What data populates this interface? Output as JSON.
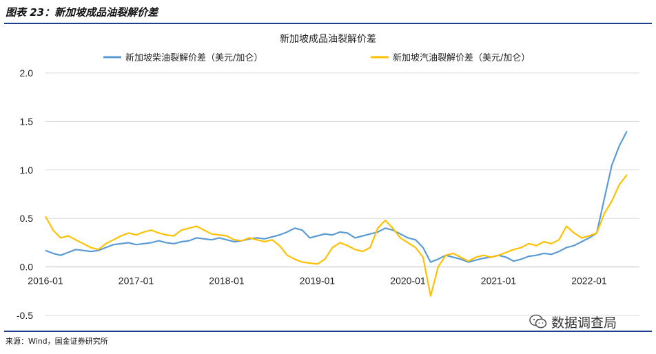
{
  "header": {
    "figure_title": "图表 23：新加坡成品油裂解价差"
  },
  "footer": {
    "source": "来源：Wind，国金证券研究所"
  },
  "watermark": {
    "text": "数据调查局",
    "icon": "wechat-icon"
  },
  "colors": {
    "diesel": "#5b9bd5",
    "gasoline": "#ffc000",
    "rule": "#1a3f8c",
    "grid": "#d9d9d9"
  },
  "chart_data": {
    "type": "line",
    "title": "新加坡成品油裂解价差",
    "xlabel": "",
    "ylabel": "",
    "ylim": [
      -0.5,
      2.0
    ],
    "yticks": [
      "-0.5",
      "0.0",
      "0.5",
      "1.0",
      "1.5",
      "2.0"
    ],
    "xticks": [
      "2016-01",
      "2017-01",
      "2018-01",
      "2019-01",
      "2020-01",
      "2021-01",
      "2022-01"
    ],
    "x_range": [
      "2016-01",
      "2022-06"
    ],
    "grid": "horizontal",
    "legend_position": "top",
    "series": [
      {
        "name": "新加坡柴油裂解价差（美元/加仑）",
        "color": "#5b9bd5",
        "points": [
          [
            "2016-01",
            0.17
          ],
          [
            "2016-02",
            0.14
          ],
          [
            "2016-03",
            0.12
          ],
          [
            "2016-04",
            0.15
          ],
          [
            "2016-05",
            0.18
          ],
          [
            "2016-06",
            0.17
          ],
          [
            "2016-07",
            0.16
          ],
          [
            "2016-08",
            0.17
          ],
          [
            "2016-09",
            0.2
          ],
          [
            "2016-10",
            0.23
          ],
          [
            "2016-11",
            0.24
          ],
          [
            "2016-12",
            0.25
          ],
          [
            "2017-01",
            0.23
          ],
          [
            "2017-02",
            0.24
          ],
          [
            "2017-03",
            0.25
          ],
          [
            "2017-04",
            0.27
          ],
          [
            "2017-05",
            0.25
          ],
          [
            "2017-06",
            0.24
          ],
          [
            "2017-07",
            0.26
          ],
          [
            "2017-08",
            0.27
          ],
          [
            "2017-09",
            0.3
          ],
          [
            "2017-10",
            0.29
          ],
          [
            "2017-11",
            0.28
          ],
          [
            "2017-12",
            0.3
          ],
          [
            "2018-01",
            0.28
          ],
          [
            "2018-02",
            0.26
          ],
          [
            "2018-03",
            0.27
          ],
          [
            "2018-04",
            0.29
          ],
          [
            "2018-05",
            0.3
          ],
          [
            "2018-06",
            0.29
          ],
          [
            "2018-07",
            0.31
          ],
          [
            "2018-08",
            0.33
          ],
          [
            "2018-09",
            0.36
          ],
          [
            "2018-10",
            0.4
          ],
          [
            "2018-11",
            0.38
          ],
          [
            "2018-12",
            0.3
          ],
          [
            "2019-01",
            0.32
          ],
          [
            "2019-02",
            0.34
          ],
          [
            "2019-03",
            0.33
          ],
          [
            "2019-04",
            0.36
          ],
          [
            "2019-05",
            0.35
          ],
          [
            "2019-06",
            0.3
          ],
          [
            "2019-07",
            0.32
          ],
          [
            "2019-08",
            0.34
          ],
          [
            "2019-09",
            0.36
          ],
          [
            "2019-10",
            0.4
          ],
          [
            "2019-11",
            0.38
          ],
          [
            "2019-12",
            0.34
          ],
          [
            "2020-01",
            0.3
          ],
          [
            "2020-02",
            0.28
          ],
          [
            "2020-03",
            0.2
          ],
          [
            "2020-04",
            0.05
          ],
          [
            "2020-05",
            0.08
          ],
          [
            "2020-06",
            0.12
          ],
          [
            "2020-07",
            0.1
          ],
          [
            "2020-08",
            0.08
          ],
          [
            "2020-09",
            0.05
          ],
          [
            "2020-10",
            0.07
          ],
          [
            "2020-11",
            0.09
          ],
          [
            "2020-12",
            0.1
          ],
          [
            "2021-01",
            0.12
          ],
          [
            "2021-02",
            0.1
          ],
          [
            "2021-03",
            0.06
          ],
          [
            "2021-04",
            0.08
          ],
          [
            "2021-05",
            0.11
          ],
          [
            "2021-06",
            0.12
          ],
          [
            "2021-07",
            0.14
          ],
          [
            "2021-08",
            0.13
          ],
          [
            "2021-09",
            0.16
          ],
          [
            "2021-10",
            0.2
          ],
          [
            "2021-11",
            0.22
          ],
          [
            "2021-12",
            0.26
          ],
          [
            "2022-01",
            0.3
          ],
          [
            "2022-02",
            0.35
          ],
          [
            "2022-03",
            0.7
          ],
          [
            "2022-04",
            1.05
          ],
          [
            "2022-05",
            1.25
          ],
          [
            "2022-06",
            1.4
          ]
        ]
      },
      {
        "name": "新加坡汽油裂解价差（美元/加仑）",
        "color": "#ffc000",
        "points": [
          [
            "2016-01",
            0.52
          ],
          [
            "2016-02",
            0.38
          ],
          [
            "2016-03",
            0.3
          ],
          [
            "2016-04",
            0.32
          ],
          [
            "2016-05",
            0.28
          ],
          [
            "2016-06",
            0.24
          ],
          [
            "2016-07",
            0.2
          ],
          [
            "2016-08",
            0.18
          ],
          [
            "2016-09",
            0.24
          ],
          [
            "2016-10",
            0.28
          ],
          [
            "2016-11",
            0.32
          ],
          [
            "2016-12",
            0.35
          ],
          [
            "2017-01",
            0.33
          ],
          [
            "2017-02",
            0.36
          ],
          [
            "2017-03",
            0.38
          ],
          [
            "2017-04",
            0.35
          ],
          [
            "2017-05",
            0.33
          ],
          [
            "2017-06",
            0.32
          ],
          [
            "2017-07",
            0.38
          ],
          [
            "2017-08",
            0.4
          ],
          [
            "2017-09",
            0.42
          ],
          [
            "2017-10",
            0.38
          ],
          [
            "2017-11",
            0.34
          ],
          [
            "2017-12",
            0.33
          ],
          [
            "2018-01",
            0.32
          ],
          [
            "2018-02",
            0.28
          ],
          [
            "2018-03",
            0.27
          ],
          [
            "2018-04",
            0.3
          ],
          [
            "2018-05",
            0.28
          ],
          [
            "2018-06",
            0.26
          ],
          [
            "2018-07",
            0.28
          ],
          [
            "2018-08",
            0.22
          ],
          [
            "2018-09",
            0.12
          ],
          [
            "2018-10",
            0.08
          ],
          [
            "2018-11",
            0.05
          ],
          [
            "2018-12",
            0.04
          ],
          [
            "2019-01",
            0.03
          ],
          [
            "2019-02",
            0.08
          ],
          [
            "2019-03",
            0.2
          ],
          [
            "2019-04",
            0.25
          ],
          [
            "2019-05",
            0.22
          ],
          [
            "2019-06",
            0.18
          ],
          [
            "2019-07",
            0.16
          ],
          [
            "2019-08",
            0.2
          ],
          [
            "2019-09",
            0.4
          ],
          [
            "2019-10",
            0.48
          ],
          [
            "2019-11",
            0.4
          ],
          [
            "2019-12",
            0.3
          ],
          [
            "2020-01",
            0.25
          ],
          [
            "2020-02",
            0.2
          ],
          [
            "2020-03",
            0.1
          ],
          [
            "2020-04",
            -0.3
          ],
          [
            "2020-05",
            0.0
          ],
          [
            "2020-06",
            0.12
          ],
          [
            "2020-07",
            0.14
          ],
          [
            "2020-08",
            0.1
          ],
          [
            "2020-09",
            0.06
          ],
          [
            "2020-10",
            0.1
          ],
          [
            "2020-11",
            0.12
          ],
          [
            "2020-12",
            0.1
          ],
          [
            "2021-01",
            0.12
          ],
          [
            "2021-02",
            0.15
          ],
          [
            "2021-03",
            0.18
          ],
          [
            "2021-04",
            0.2
          ],
          [
            "2021-05",
            0.24
          ],
          [
            "2021-06",
            0.22
          ],
          [
            "2021-07",
            0.26
          ],
          [
            "2021-08",
            0.24
          ],
          [
            "2021-09",
            0.28
          ],
          [
            "2021-10",
            0.42
          ],
          [
            "2021-11",
            0.35
          ],
          [
            "2021-12",
            0.3
          ],
          [
            "2022-01",
            0.32
          ],
          [
            "2022-02",
            0.35
          ],
          [
            "2022-03",
            0.55
          ],
          [
            "2022-04",
            0.68
          ],
          [
            "2022-05",
            0.85
          ],
          [
            "2022-06",
            0.95
          ]
        ]
      }
    ]
  }
}
